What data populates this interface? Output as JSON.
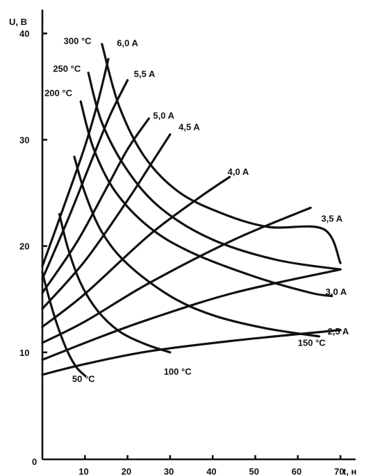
{
  "chart_data": {
    "type": "line",
    "ylabel": "U, В",
    "xlabel": "t, н",
    "xlim": [
      0,
      72
    ],
    "ylim": [
      0,
      42
    ],
    "x_ticks": [
      {
        "v": 10,
        "label": "10"
      },
      {
        "v": 20,
        "label": "20"
      },
      {
        "v": 30,
        "label": "30"
      },
      {
        "v": 40,
        "label": "40"
      },
      {
        "v": 50,
        "label": "50"
      },
      {
        "v": 60,
        "label": "60"
      },
      {
        "v": 70,
        "label": "70"
      }
    ],
    "y_ticks": [
      {
        "v": 10,
        "label": "10"
      },
      {
        "v": 20,
        "label": "20"
      },
      {
        "v": 30,
        "label": "30"
      },
      {
        "v": 40,
        "label": "40"
      }
    ],
    "origin_label": "0",
    "current_series": [
      {
        "name": "2,5 A",
        "label_at": [
          67,
          11.7
        ],
        "points": [
          [
            0,
            7.9
          ],
          [
            10,
            8.9
          ],
          [
            25,
            10.1
          ],
          [
            45,
            11.1
          ],
          [
            70,
            12.1
          ]
        ]
      },
      {
        "name": "3,0 A",
        "label_at": [
          66.5,
          15.4
        ],
        "points": [
          [
            0,
            9.3
          ],
          [
            12,
            11.2
          ],
          [
            25,
            13.1
          ],
          [
            45,
            15.6
          ],
          [
            70,
            17.8
          ]
        ]
      },
      {
        "name": "3,5 A",
        "label_at": [
          65.5,
          22.3
        ],
        "points": [
          [
            0,
            10.9
          ],
          [
            10,
            12.9
          ],
          [
            25,
            16.5
          ],
          [
            45,
            20.6
          ],
          [
            63,
            23.6
          ]
        ]
      },
      {
        "name": "4,0 A",
        "label_at": [
          43.5,
          26.7
        ],
        "points": [
          [
            0,
            12.4
          ],
          [
            10,
            15.5
          ],
          [
            25,
            21.0
          ],
          [
            37,
            24.6
          ],
          [
            44,
            26.5
          ]
        ]
      },
      {
        "name": "4,5 A",
        "label_at": [
          32,
          30.9
        ],
        "points": [
          [
            0,
            14.1
          ],
          [
            10,
            18.6
          ],
          [
            20,
            24.3
          ],
          [
            25,
            27.4
          ],
          [
            30,
            30.5
          ]
        ]
      },
      {
        "name": "5,0 A",
        "label_at": [
          26,
          32.0
        ],
        "points": [
          [
            0,
            15.6
          ],
          [
            8,
            20.3
          ],
          [
            15,
            25.4
          ],
          [
            20,
            29.1
          ],
          [
            25,
            32.0
          ]
        ]
      },
      {
        "name": "5,5 A",
        "label_at": [
          21.5,
          35.9
        ],
        "points": [
          [
            0,
            16.9
          ],
          [
            6,
            22.5
          ],
          [
            12,
            28.5
          ],
          [
            16,
            32.4
          ],
          [
            20,
            35.6
          ]
        ]
      },
      {
        "name": "6,0 A",
        "label_at": [
          17.5,
          38.8
        ],
        "points": [
          [
            0,
            18.1
          ],
          [
            6,
            24.8
          ],
          [
            10,
            29.4
          ],
          [
            13,
            33.5
          ],
          [
            15.5,
            37.6
          ]
        ]
      }
    ],
    "temperature_series": [
      {
        "name": "50 °C",
        "label_at": [
          7,
          7.2
        ],
        "points": [
          [
            0,
            17.5
          ],
          [
            2,
            14.5
          ],
          [
            4,
            12.0
          ],
          [
            6,
            10.0
          ],
          [
            8,
            8.6
          ],
          [
            10,
            7.8
          ]
        ]
      },
      {
        "name": "100 °C",
        "label_at": [
          28.5,
          7.9
        ],
        "points": [
          [
            4,
            23.0
          ],
          [
            6,
            19.8
          ],
          [
            9,
            16.5
          ],
          [
            13,
            13.9
          ],
          [
            18,
            12.0
          ],
          [
            24,
            10.8
          ],
          [
            30,
            10.0
          ]
        ]
      },
      {
        "name": "150 °C",
        "label_at": [
          60,
          10.6
        ],
        "points": [
          [
            7.5,
            28.4
          ],
          [
            10,
            25.0
          ],
          [
            14,
            21.3
          ],
          [
            20,
            18.3
          ],
          [
            30,
            15.3
          ],
          [
            40,
            13.5
          ],
          [
            52,
            12.3
          ],
          [
            65,
            11.5
          ]
        ]
      },
      {
        "name": "200 °C",
        "label_at": [
          0.5,
          34.1
        ],
        "points": [
          [
            9,
            33.6
          ],
          [
            12,
            29.2
          ],
          [
            17,
            25.2
          ],
          [
            25,
            21.8
          ],
          [
            35,
            19.4
          ],
          [
            50,
            17.1
          ],
          [
            63,
            15.6
          ],
          [
            68,
            15.3
          ]
        ]
      },
      {
        "name": "250 °C",
        "label_at": [
          2.5,
          36.4
        ],
        "points": [
          [
            10.8,
            36.3
          ],
          [
            14,
            31.6
          ],
          [
            20,
            27.1
          ],
          [
            28,
            23.5
          ],
          [
            40,
            20.6
          ],
          [
            55,
            18.7
          ],
          [
            70,
            17.8
          ]
        ]
      },
      {
        "name": "300 °C",
        "label_at": [
          5,
          39.0
        ],
        "points": [
          [
            14,
            39.0
          ],
          [
            18,
            33.2
          ],
          [
            24,
            28.4
          ],
          [
            32,
            25.1
          ],
          [
            42,
            23.1
          ],
          [
            53,
            21.8
          ],
          [
            66,
            21.6
          ],
          [
            70,
            18.4
          ]
        ]
      }
    ]
  }
}
